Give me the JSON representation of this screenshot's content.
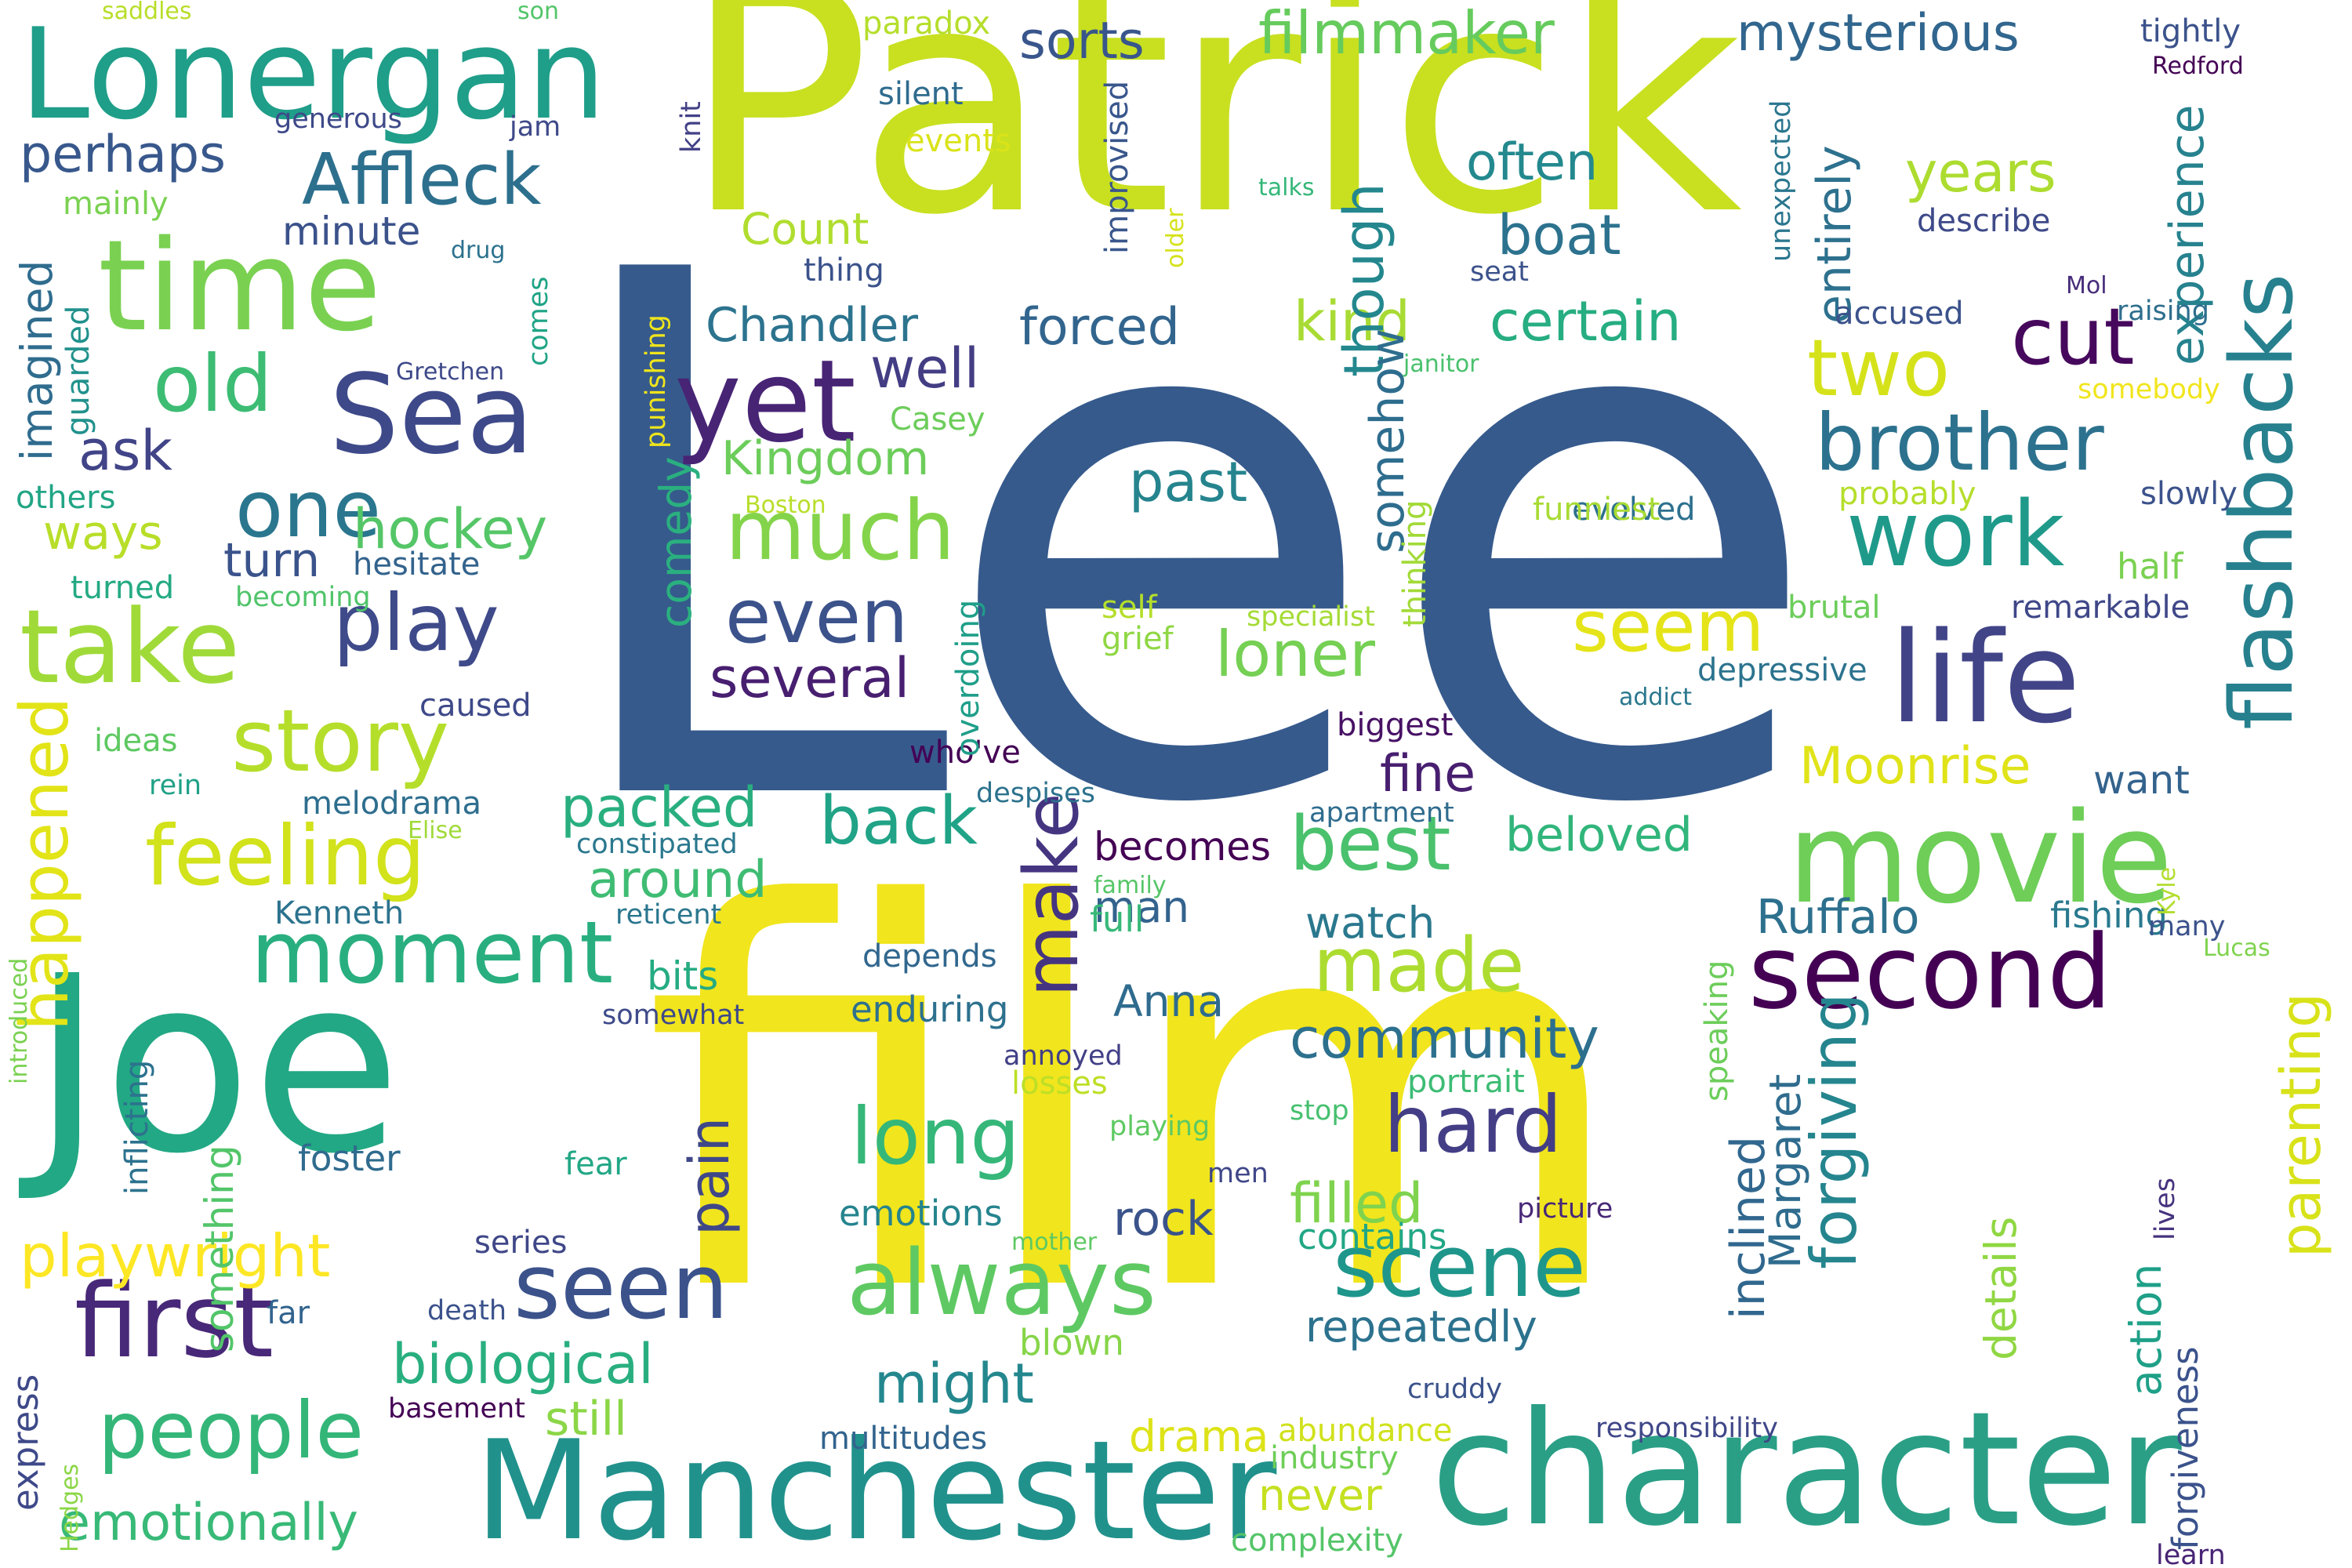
{
  "words": [
    {
      "text": "Lee",
      "color": "#365a8c"
    },
    {
      "text": "film",
      "color": "#f1e51d"
    },
    {
      "text": "Patrick",
      "color": "#c8e020"
    },
    {
      "text": "Joe",
      "color": "#22a884"
    },
    {
      "text": "character",
      "color": "#2a9f86"
    },
    {
      "text": "Manchester",
      "color": "#21918c"
    },
    {
      "text": "Lonergan",
      "color": "#1f9e89"
    },
    {
      "text": "movie",
      "color": "#6ece58"
    },
    {
      "text": "time",
      "color": "#7ad151"
    },
    {
      "text": "life",
      "color": "#414487"
    },
    {
      "text": "flashbacks",
      "color": "#27808e"
    },
    {
      "text": "second",
      "color": "#440154"
    },
    {
      "text": "yet",
      "color": "#482475"
    },
    {
      "text": "Sea",
      "color": "#3e4989"
    },
    {
      "text": "take",
      "color": "#a0da39"
    },
    {
      "text": "first",
      "color": "#482878"
    },
    {
      "text": "seen",
      "color": "#3b528b"
    },
    {
      "text": "work",
      "color": "#1f9a8a"
    },
    {
      "text": "scene",
      "color": "#1f968b"
    },
    {
      "text": "moment",
      "color": "#29af7f"
    },
    {
      "text": "story",
      "color": "#b5de2b"
    },
    {
      "text": "always",
      "color": "#5ec962"
    },
    {
      "text": "brother",
      "color": "#2c728e"
    },
    {
      "text": "feeling",
      "color": "#d2e21b"
    },
    {
      "text": "people",
      "color": "#34b679"
    },
    {
      "text": "much",
      "color": "#84d44b"
    },
    {
      "text": "Affleck",
      "color": "#2d708e"
    },
    {
      "text": "two",
      "color": "#d5e21a"
    },
    {
      "text": "cut",
      "color": "#46085c"
    },
    {
      "text": "one",
      "color": "#2a768e"
    },
    {
      "text": "old",
      "color": "#3dbc74"
    },
    {
      "text": "play",
      "color": "#3e4a89"
    },
    {
      "text": "even",
      "color": "#3b528b"
    },
    {
      "text": "hard",
      "color": "#433e85"
    },
    {
      "text": "long",
      "color": "#35b779"
    },
    {
      "text": "made",
      "color": "#addc30"
    },
    {
      "text": "best",
      "color": "#4ac16d"
    },
    {
      "text": "make",
      "color": "#453581"
    },
    {
      "text": "back",
      "color": "#20a386"
    },
    {
      "text": "happened",
      "color": "#e2e418"
    },
    {
      "text": "playwright",
      "color": "#fde725"
    },
    {
      "text": "parenting",
      "color": "#d8e219"
    },
    {
      "text": "seem",
      "color": "#e5e419"
    },
    {
      "text": "forgiving",
      "color": "#25858e"
    },
    {
      "text": "filmmaker",
      "color": "#66cb5d"
    },
    {
      "text": "mysterious",
      "color": "#31668e"
    },
    {
      "text": "emotionally",
      "color": "#38b977"
    },
    {
      "text": "biological",
      "color": "#29af7f"
    },
    {
      "text": "Moonrise",
      "color": "#e0e318"
    },
    {
      "text": "community",
      "color": "#2d708e"
    },
    {
      "text": "certain",
      "color": "#26ad81"
    },
    {
      "text": "might",
      "color": "#24878e"
    },
    {
      "text": "loner",
      "color": "#75d054"
    },
    {
      "text": "several",
      "color": "#481f70"
    },
    {
      "text": "pain",
      "color": "#3f4788"
    },
    {
      "text": "hockey",
      "color": "#55c667"
    },
    {
      "text": "Kingdom",
      "color": "#6ccd5a"
    },
    {
      "text": "Chandler",
      "color": "#2c738e"
    },
    {
      "text": "forced",
      "color": "#32658e"
    },
    {
      "text": "kind",
      "color": "#a8db34"
    },
    {
      "text": "boat",
      "color": "#2c728e"
    },
    {
      "text": "perhaps",
      "color": "#38588c"
    },
    {
      "text": "ask",
      "color": "#414487"
    },
    {
      "text": "ways",
      "color": "#b8de29"
    },
    {
      "text": "turn",
      "color": "#3a538b"
    },
    {
      "text": "well",
      "color": "#433d84"
    },
    {
      "text": "past",
      "color": "#25848e"
    },
    {
      "text": "packed",
      "color": "#29af7f"
    },
    {
      "text": "around",
      "color": "#3fbc73"
    },
    {
      "text": "often",
      "color": "#23898e"
    },
    {
      "text": "years",
      "color": "#addc30"
    },
    {
      "text": "Count",
      "color": "#b0dd2f"
    },
    {
      "text": "sorts",
      "color": "#39568c"
    },
    {
      "text": "though",
      "color": "#24878e"
    },
    {
      "text": "experience",
      "color": "#26828e"
    },
    {
      "text": "entirely",
      "color": "#2d718e"
    },
    {
      "text": "imagined",
      "color": "#2f6c8e"
    },
    {
      "text": "minute",
      "color": "#3b528b"
    },
    {
      "text": "comedy",
      "color": "#2ab07f"
    },
    {
      "text": "somehow",
      "color": "#2e6d8e"
    },
    {
      "text": "fine",
      "color": "#481f70"
    },
    {
      "text": "watch",
      "color": "#2a788e"
    },
    {
      "text": "beloved",
      "color": "#31b57b"
    },
    {
      "text": "becomes",
      "color": "#440154"
    },
    {
      "text": "man",
      "color": "#33638d"
    },
    {
      "text": "Anna",
      "color": "#2f6b8e"
    },
    {
      "text": "Ruffalo",
      "color": "#2d708e"
    },
    {
      "text": "inclined",
      "color": "#31678e"
    },
    {
      "text": "Margaret",
      "color": "#2f6c8e"
    },
    {
      "text": "details",
      "color": "#90d743"
    },
    {
      "text": "action",
      "color": "#1fa088"
    },
    {
      "text": "filled",
      "color": "#7fd34e"
    },
    {
      "text": "contains",
      "color": "#22a785"
    },
    {
      "text": "repeatedly",
      "color": "#2c728e"
    },
    {
      "text": "rock",
      "color": "#3a538b"
    },
    {
      "text": "emotions",
      "color": "#25848e"
    },
    {
      "text": "still",
      "color": "#8bd646"
    },
    {
      "text": "something",
      "color": "#52c569"
    },
    {
      "text": "series",
      "color": "#3f4788"
    },
    {
      "text": "express",
      "color": "#3e4989"
    },
    {
      "text": "drama",
      "color": "#dde318"
    },
    {
      "text": "never",
      "color": "#c5e021"
    },
    {
      "text": "abundance",
      "color": "#d0e11c"
    },
    {
      "text": "industry",
      "color": "#6ece58"
    },
    {
      "text": "complexity",
      "color": "#54c568"
    },
    {
      "text": "multitudes",
      "color": "#32648e"
    },
    {
      "text": "forgiveness",
      "color": "#3b528b"
    },
    {
      "text": "lives",
      "color": "#46337e"
    },
    {
      "text": "cruddy",
      "color": "#3b528b"
    },
    {
      "text": "responsibility",
      "color": "#3f4788"
    },
    {
      "text": "learn",
      "color": "#482475"
    },
    {
      "text": "half",
      "color": "#7ad151"
    },
    {
      "text": "remarkable",
      "color": "#3f4788"
    },
    {
      "text": "depressive",
      "color": "#2c738e"
    },
    {
      "text": "brutal",
      "color": "#6ccd5a"
    },
    {
      "text": "biggest",
      "color": "#471164"
    },
    {
      "text": "want",
      "color": "#33638d"
    },
    {
      "text": "fishing",
      "color": "#29798e"
    },
    {
      "text": "many",
      "color": "#3b528b"
    },
    {
      "text": "Lucas",
      "color": "#7fd34e"
    },
    {
      "text": "Kyle",
      "color": "#b2dd2d"
    },
    {
      "text": "speaking",
      "color": "#6ccd5a"
    },
    {
      "text": "portrait",
      "color": "#3dbc74"
    },
    {
      "text": "stop",
      "color": "#46c06f"
    },
    {
      "text": "picture",
      "color": "#482878"
    },
    {
      "text": "men",
      "color": "#3f4788"
    },
    {
      "text": "mother",
      "color": "#5ec962"
    },
    {
      "text": "playing",
      "color": "#5ec962"
    },
    {
      "text": "annoyed",
      "color": "#424086"
    },
    {
      "text": "losses",
      "color": "#bddf26"
    },
    {
      "text": "blown",
      "color": "#86d549"
    },
    {
      "text": "death",
      "color": "#3b528b"
    },
    {
      "text": "far",
      "color": "#32648e"
    },
    {
      "text": "basement",
      "color": "#440154"
    },
    {
      "text": "Hedges",
      "color": "#8bd646"
    },
    {
      "text": "introduced",
      "color": "#7ad151"
    },
    {
      "text": "inflicting",
      "color": "#2c728e"
    },
    {
      "text": "foster",
      "color": "#2f6b8e"
    },
    {
      "text": "somewhat",
      "color": "#3e4a89"
    },
    {
      "text": "Kenneth",
      "color": "#2c738e"
    },
    {
      "text": "enduring",
      "color": "#2d718e"
    },
    {
      "text": "depends",
      "color": "#31678e"
    },
    {
      "text": "bits",
      "color": "#25ab82"
    },
    {
      "text": "full",
      "color": "#37b878"
    },
    {
      "text": "family",
      "color": "#55c667"
    },
    {
      "text": "reticent",
      "color": "#2a768e"
    },
    {
      "text": "constipated",
      "color": "#2a788e"
    },
    {
      "text": "melodrama",
      "color": "#2e6e8e"
    },
    {
      "text": "Elise",
      "color": "#a0da39"
    },
    {
      "text": "rein",
      "color": "#1fa187"
    },
    {
      "text": "ideas",
      "color": "#5ec962"
    },
    {
      "text": "caused",
      "color": "#3e4989"
    },
    {
      "text": "who've",
      "color": "#440154"
    },
    {
      "text": "despises",
      "color": "#2c728e"
    },
    {
      "text": "apartment",
      "color": "#2f6c8e"
    },
    {
      "text": "fear",
      "color": "#22a785"
    },
    {
      "text": "addict",
      "color": "#2a788e"
    },
    {
      "text": "grief",
      "color": "#8fd744"
    },
    {
      "text": "self",
      "color": "#b5de2b"
    },
    {
      "text": "specialist",
      "color": "#a5db36"
    },
    {
      "text": "overdoing",
      "color": "#1f9e89"
    },
    {
      "text": "thinking",
      "color": "#a2da37"
    },
    {
      "text": "evolved",
      "color": "#2d708e"
    },
    {
      "text": "funniest",
      "color": "#a8db34"
    },
    {
      "text": "probably",
      "color": "#b5de2b"
    },
    {
      "text": "slowly",
      "color": "#3b528b"
    },
    {
      "text": "somebody",
      "color": "#f1e51d"
    },
    {
      "text": "janitor",
      "color": "#4ac16d"
    },
    {
      "text": "Casey",
      "color": "#6ccd5a"
    },
    {
      "text": "Boston",
      "color": "#b8de29"
    },
    {
      "text": "Gretchen",
      "color": "#3e4989"
    },
    {
      "text": "guarded",
      "color": "#21918c"
    },
    {
      "text": "others",
      "color": "#21a585"
    },
    {
      "text": "turned",
      "color": "#24aa83"
    },
    {
      "text": "becoming",
      "color": "#50c46a"
    },
    {
      "text": "hesitate",
      "color": "#33638d"
    },
    {
      "text": "comes",
      "color": "#20a486"
    },
    {
      "text": "drug",
      "color": "#2c728e"
    },
    {
      "text": "punishing",
      "color": "#efe51c"
    },
    {
      "text": "thing",
      "color": "#3b528b"
    },
    {
      "text": "improvised",
      "color": "#39568c"
    },
    {
      "text": "older",
      "color": "#d5e21a"
    },
    {
      "text": "unexpected",
      "color": "#2a768e"
    },
    {
      "text": "describe",
      "color": "#3e4a89"
    },
    {
      "text": "seat",
      "color": "#3b528b"
    },
    {
      "text": "accused",
      "color": "#3b528b"
    },
    {
      "text": "Mol",
      "color": "#472d7b"
    },
    {
      "text": "raising",
      "color": "#2e6e8e"
    },
    {
      "text": "talks",
      "color": "#35b779"
    },
    {
      "text": "events",
      "color": "#dae319"
    },
    {
      "text": "silent",
      "color": "#2f6b8e"
    },
    {
      "text": "paradox",
      "color": "#b5de2b"
    },
    {
      "text": "knit",
      "color": "#424086"
    },
    {
      "text": "tightly",
      "color": "#3b528b"
    },
    {
      "text": "Redford",
      "color": "#440154"
    },
    {
      "text": "son",
      "color": "#52c569"
    },
    {
      "text": "saddles",
      "color": "#b8de29"
    },
    {
      "text": "jam",
      "color": "#3e4989"
    },
    {
      "text": "generous",
      "color": "#3e4989"
    },
    {
      "text": "mainly",
      "color": "#7ad151"
    }
  ]
}
